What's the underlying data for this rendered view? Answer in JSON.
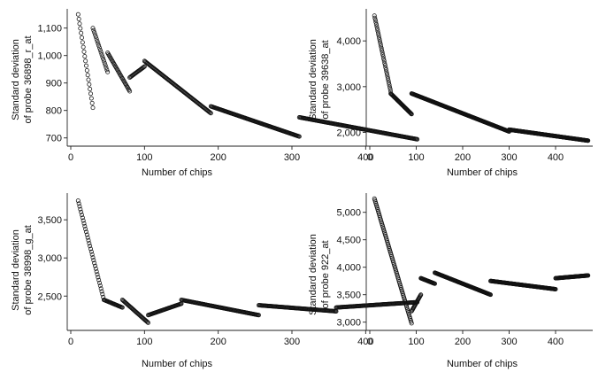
{
  "chart_data": [
    {
      "type": "scatter",
      "title": "",
      "xlabel": "Number of chips",
      "ylabel_lines": [
        "Standard deviation",
        "of probe 36898_r_at"
      ],
      "xlim": [
        0,
        480
      ],
      "ylim": [
        670,
        1170
      ],
      "xticks": [
        0,
        100,
        200,
        300,
        400
      ],
      "xtick_labels": [
        "0",
        "100",
        "200",
        "300",
        "400"
      ],
      "yticks": [
        700,
        800,
        900,
        1000,
        1100
      ],
      "ytick_labels": [
        "700",
        "800",
        "900",
        "1,000",
        "1,100"
      ],
      "segments": [
        {
          "x": [
            10,
            30
          ],
          "y": [
            1150,
            810
          ]
        },
        {
          "x": [
            30,
            50
          ],
          "y": [
            1100,
            940
          ]
        },
        {
          "x": [
            50,
            80
          ],
          "y": [
            1010,
            870
          ]
        },
        {
          "x": [
            80,
            100
          ],
          "y": [
            920,
            960
          ]
        },
        {
          "x": [
            100,
            190
          ],
          "y": [
            980,
            790
          ]
        },
        {
          "x": [
            190,
            310
          ],
          "y": [
            815,
            705
          ]
        },
        {
          "x": [
            310,
            470
          ],
          "y": [
            775,
            695
          ]
        }
      ]
    },
    {
      "type": "scatter",
      "title": "",
      "xlabel": "Number of chips",
      "ylabel_lines": [
        "Standard deviation",
        "of probe 39638_at"
      ],
      "xlim": [
        0,
        480
      ],
      "ylim": [
        1700,
        4700
      ],
      "xticks": [
        0,
        100,
        200,
        300,
        400
      ],
      "xtick_labels": [
        "0",
        "100",
        "200",
        "300",
        "400"
      ],
      "yticks": [
        2000,
        3000,
        4000
      ],
      "ytick_labels": [
        "2,000",
        "3,000",
        "4,000"
      ],
      "segments": [
        {
          "x": [
            10,
            45
          ],
          "y": [
            4550,
            2900
          ]
        },
        {
          "x": [
            45,
            90
          ],
          "y": [
            2850,
            2400
          ]
        },
        {
          "x": [
            90,
            300
          ],
          "y": [
            2850,
            2020
          ]
        },
        {
          "x": [
            300,
            470
          ],
          "y": [
            2060,
            1820
          ]
        }
      ]
    },
    {
      "type": "scatter",
      "title": "",
      "xlabel": "Number of chips",
      "ylabel_lines": [
        "Standard deviation",
        "of probe 38998_g_at"
      ],
      "xlim": [
        0,
        480
      ],
      "ylim": [
        2050,
        3850
      ],
      "xticks": [
        0,
        100,
        200,
        300,
        400
      ],
      "xtick_labels": [
        "0",
        "100",
        "200",
        "300",
        "400"
      ],
      "yticks": [
        2500,
        3000,
        3500
      ],
      "ytick_labels": [
        "2,500",
        "3,000",
        "3,500"
      ],
      "segments": [
        {
          "x": [
            10,
            45
          ],
          "y": [
            3750,
            2450
          ]
        },
        {
          "x": [
            45,
            70
          ],
          "y": [
            2450,
            2350
          ]
        },
        {
          "x": [
            70,
            105
          ],
          "y": [
            2450,
            2150
          ]
        },
        {
          "x": [
            105,
            150
          ],
          "y": [
            2250,
            2400
          ]
        },
        {
          "x": [
            150,
            255
          ],
          "y": [
            2450,
            2250
          ]
        },
        {
          "x": [
            255,
            360
          ],
          "y": [
            2380,
            2300
          ]
        },
        {
          "x": [
            360,
            470
          ],
          "y": [
            2350,
            2420
          ]
        }
      ]
    },
    {
      "type": "scatter",
      "title": "",
      "xlabel": "Number of chips",
      "ylabel_lines": [
        "Standard deviation",
        "of probe 922_at"
      ],
      "xlim": [
        0,
        480
      ],
      "ylim": [
        2850,
        5350
      ],
      "xticks": [
        0,
        100,
        200,
        300,
        400
      ],
      "xtick_labels": [
        "0",
        "100",
        "200",
        "300",
        "400"
      ],
      "yticks": [
        3000,
        3500,
        4000,
        4500,
        5000
      ],
      "ytick_labels": [
        "3,000",
        "3,500",
        "4,000",
        "4,500",
        "5,000"
      ],
      "segments": [
        {
          "x": [
            10,
            90
          ],
          "y": [
            5250,
            2980
          ]
        },
        {
          "x": [
            90,
            110
          ],
          "y": [
            3200,
            3500
          ]
        },
        {
          "x": [
            110,
            140
          ],
          "y": [
            3800,
            3700
          ]
        },
        {
          "x": [
            140,
            260
          ],
          "y": [
            3900,
            3500
          ]
        },
        {
          "x": [
            260,
            400
          ],
          "y": [
            3750,
            3600
          ]
        },
        {
          "x": [
            400,
            470
          ],
          "y": [
            3800,
            3850
          ]
        }
      ]
    }
  ]
}
